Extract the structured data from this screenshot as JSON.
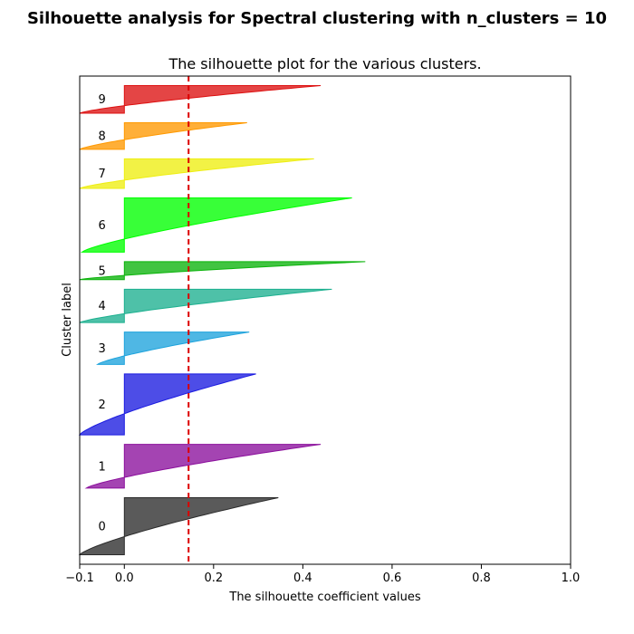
{
  "suptitle": "Silhouette analysis for Spectral clustering with n_clusters = 10",
  "chart_data": {
    "type": "silhouette",
    "title": "The silhouette plot for the various clusters.",
    "xlabel": "The silhouette coefficient values",
    "ylabel": "Cluster label",
    "xlim": [
      -0.1,
      1.0
    ],
    "xticks": [
      -0.1,
      0.0,
      0.2,
      0.4,
      0.6,
      0.8,
      1.0
    ],
    "xtick_labels": [
      "−0.1",
      "0.0",
      "0.2",
      "0.4",
      "0.6",
      "0.8",
      "1.0"
    ],
    "average_silhouette": 0.144,
    "average_line_color": "#dd0000",
    "grid": false,
    "clusters": [
      {
        "label": "0",
        "color": "#2b2b2b",
        "size": 60,
        "min": -0.1,
        "max": 0.345
      },
      {
        "label": "1",
        "color": "#8b0f9c",
        "size": 46,
        "min": -0.085,
        "max": 0.44
      },
      {
        "label": "2",
        "color": "#1b1be0",
        "size": 64,
        "min": -0.1,
        "max": 0.295
      },
      {
        "label": "3",
        "color": "#1ea3dc",
        "size": 34,
        "min": -0.06,
        "max": 0.28
      },
      {
        "label": "4",
        "color": "#1cb08f",
        "size": 35,
        "min": -0.1,
        "max": 0.465
      },
      {
        "label": "5",
        "color": "#0bb30b",
        "size": 19,
        "min": -0.1,
        "max": 0.54
      },
      {
        "label": "6",
        "color": "#00ff00",
        "size": 57,
        "min": -0.095,
        "max": 0.51
      },
      {
        "label": "7",
        "color": "#eeee11",
        "size": 31,
        "min": -0.1,
        "max": 0.425
      },
      {
        "label": "8",
        "color": "#ff9900",
        "size": 28,
        "min": -0.1,
        "max": 0.275
      },
      {
        "label": "9",
        "color": "#dd1111",
        "size": 29,
        "min": -0.1,
        "max": 0.44
      }
    ]
  }
}
